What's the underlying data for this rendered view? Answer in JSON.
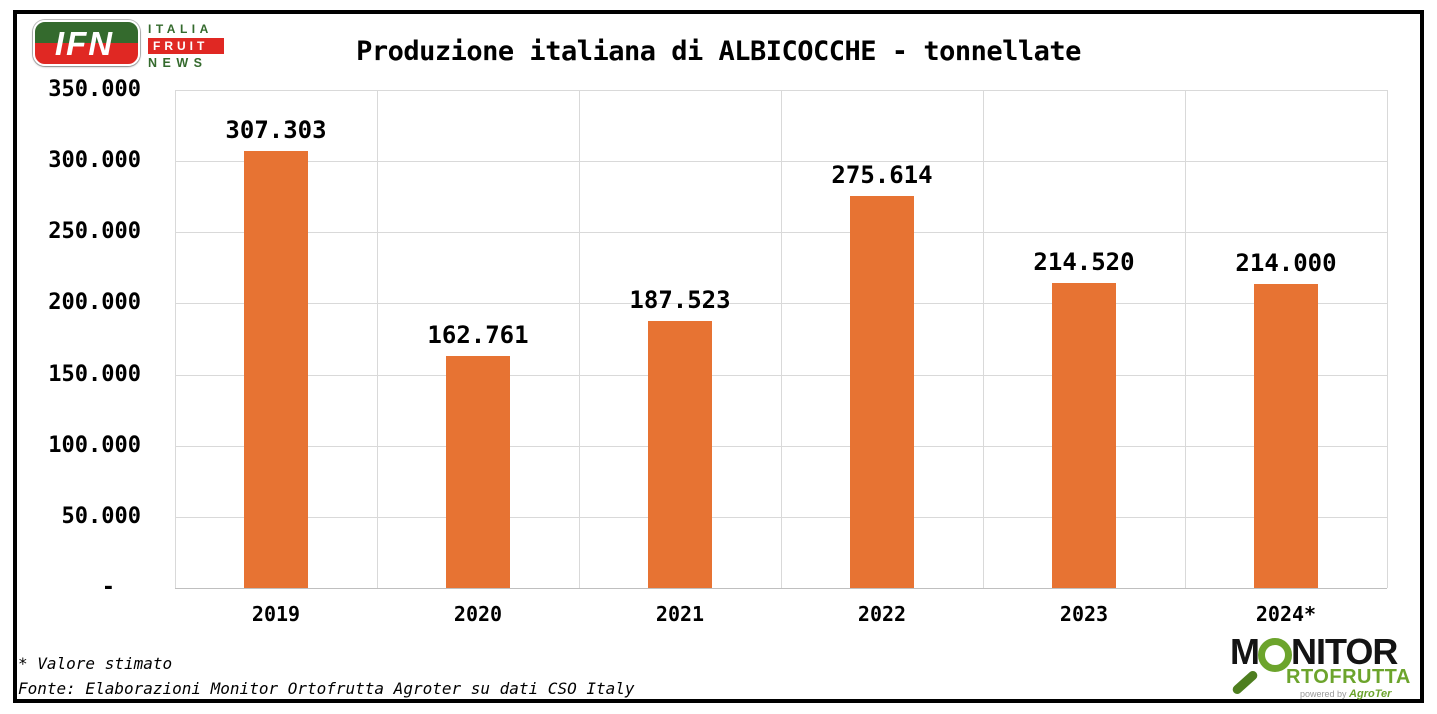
{
  "header": {
    "title": "Produzione italiana di ALBICOCCHE - tonnellate"
  },
  "ifn_logo": {
    "acronym": "IFN",
    "line1": "ITALIA",
    "line2": "FRUIT",
    "line3": "NEWS",
    "green": "#346A2D",
    "red": "#E02823"
  },
  "chart_data": {
    "type": "bar",
    "title": "Produzione italiana di ALBICOCCHE - tonnellate",
    "categories": [
      "2019",
      "2020",
      "2021",
      "2022",
      "2023",
      "2024*"
    ],
    "values": [
      307303,
      162761,
      187523,
      275614,
      214520,
      214000
    ],
    "value_labels": [
      "307.303",
      "162.761",
      "187.523",
      "275.614",
      "214.520",
      "214.000"
    ],
    "xlabel": "",
    "ylabel": "",
    "ylim": [
      0,
      350000
    ],
    "y_tick_interval": 50000,
    "y_tick_labels_top_to_bottom": [
      "350.000",
      "300.000",
      "250.000",
      "200.000",
      "150.000",
      "100.000",
      "50.000",
      "-"
    ],
    "grid": true,
    "legend": "none",
    "bar_color": "#E77333",
    "gridline_color": "#D9D9D9",
    "axis_line_color": "#BFBFBF"
  },
  "footer": {
    "note": "* Valore stimato",
    "source": "Fonte: Elaborazioni Monitor Ortofrutta Agroter su dati CSO Italy"
  },
  "monitor_logo": {
    "part1": "M",
    "part2": "NITOR",
    "line2": "RTOFRUTTA",
    "powered_by": "powered by",
    "brand": "AgroTer",
    "green": "#6CA42C",
    "dark_green": "#4E7E1F"
  }
}
